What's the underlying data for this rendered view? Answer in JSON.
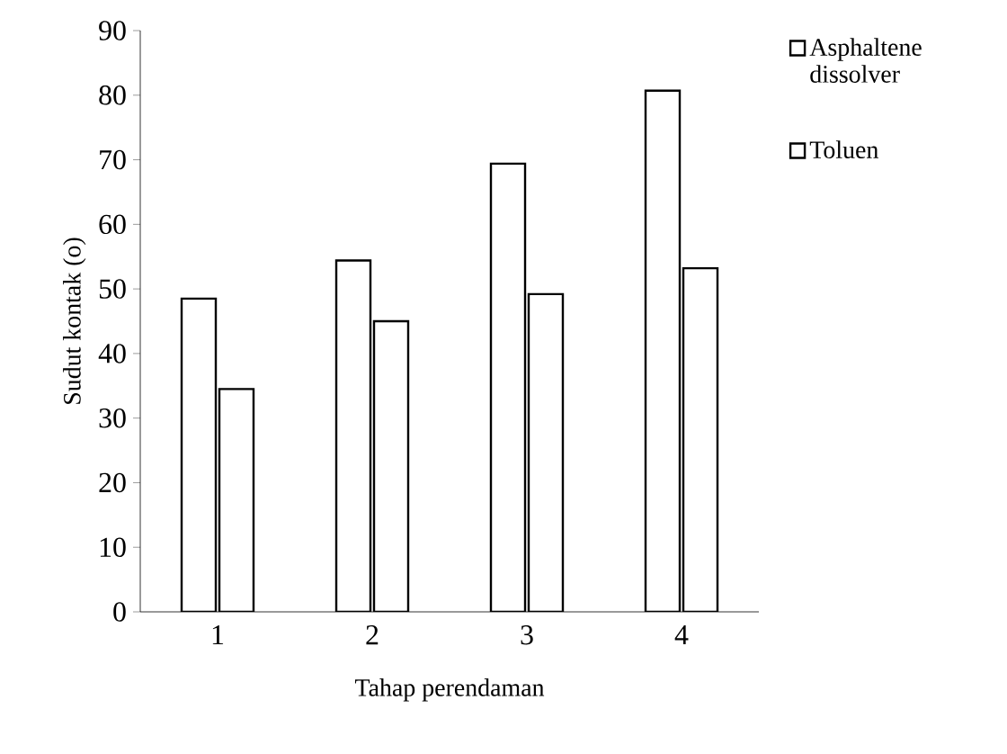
{
  "chart_data": {
    "type": "bar",
    "xlabel": "Tahap perendaman",
    "ylabel": "Sudut kontak (o)",
    "categories": [
      "1",
      "2",
      "3",
      "4"
    ],
    "series": [
      {
        "name": "Asphaltene dissolver",
        "color": "#ffffff",
        "values": [
          48.5,
          54.4,
          69.4,
          80.7
        ]
      },
      {
        "name": "Toluen",
        "color": "#ffffff",
        "values": [
          34.5,
          45.0,
          49.2,
          53.2
        ]
      }
    ],
    "ylim": [
      0,
      90
    ],
    "yticks": [
      0,
      10,
      20,
      30,
      40,
      50,
      60,
      70,
      80,
      90
    ],
    "legend": "right"
  }
}
